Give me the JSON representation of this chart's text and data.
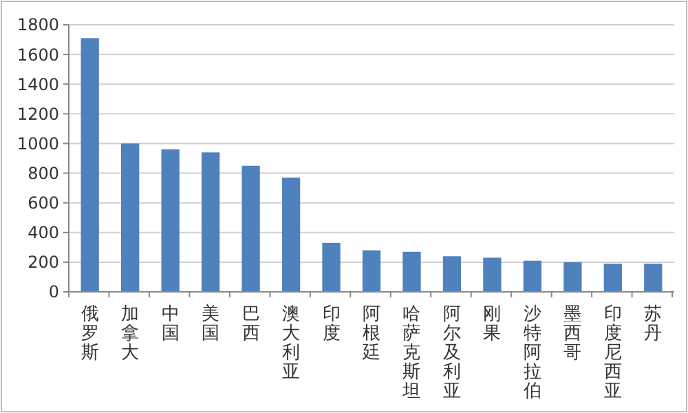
{
  "chart_data": {
    "type": "bar",
    "categories": [
      "俄罗斯",
      "加拿大",
      "中国",
      "美国",
      "巴西",
      "澳大利亚",
      "印度",
      "阿根廷",
      "哈萨克斯坦",
      "阿尔及利亚",
      "刚果",
      "沙特阿拉伯",
      "墨西哥",
      "印度尼西亚",
      "苏丹"
    ],
    "values": [
      1710,
      1000,
      960,
      940,
      850,
      770,
      330,
      280,
      270,
      240,
      230,
      210,
      200,
      190,
      190
    ],
    "color": "#4f81bd",
    "ylim": [
      0,
      1800
    ],
    "yticks": [
      0,
      200,
      400,
      600,
      800,
      1000,
      1200,
      1400,
      1600,
      1800
    ],
    "grid": "y"
  }
}
